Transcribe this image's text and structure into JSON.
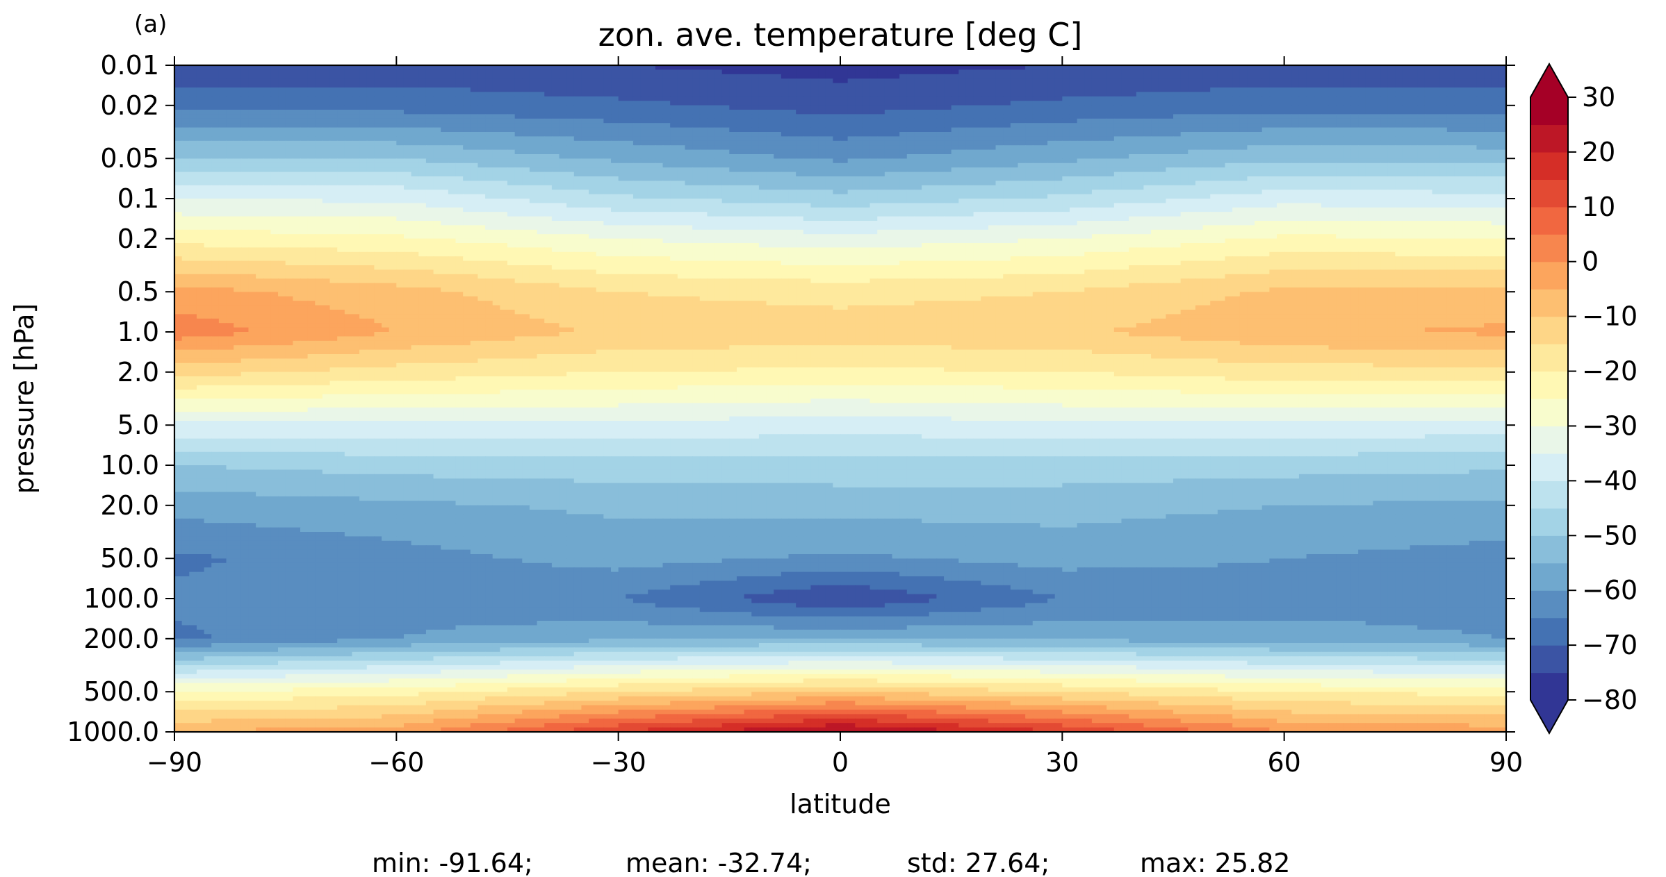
{
  "chart_data": {
    "type": "heatmap",
    "panel_label": "(a)",
    "title": "zon. ave. temperature [deg C]",
    "xlabel": "latitude",
    "ylabel": "pressure [hPa]",
    "x_scale": "linear",
    "y_scale": "log",
    "y_inverted": true,
    "xlim": [
      -90,
      90
    ],
    "ylim": [
      1000.0,
      0.01
    ],
    "x_ticks": [
      -90,
      -60,
      -30,
      0,
      30,
      60,
      90
    ],
    "x_tick_labels": [
      "−90",
      "−60",
      "−30",
      "0",
      "30",
      "60",
      "90"
    ],
    "y_ticks": [
      0.01,
      0.02,
      0.05,
      0.1,
      0.2,
      0.5,
      1.0,
      2.0,
      5.0,
      10.0,
      20.0,
      50.0,
      100.0,
      200.0,
      500.0,
      1000.0
    ],
    "y_tick_labels": [
      "0.01",
      "0.02",
      "0.05",
      "0.1",
      "0.2",
      "0.5",
      "1.0",
      "2.0",
      "5.0",
      "10.0",
      "20.0",
      "50.0",
      "100.0",
      "200.0",
      "500.0",
      "1000.0"
    ],
    "colorbar": {
      "cmap": "RdYlBu_r",
      "extend": "both",
      "levels": [
        -80,
        -75,
        -70,
        -65,
        -60,
        -55,
        -50,
        -45,
        -40,
        -35,
        -30,
        -25,
        -20,
        -15,
        -10,
        -5,
        0,
        5,
        10,
        15,
        20,
        25,
        30
      ],
      "ticks": [
        30,
        20,
        10,
        0,
        -10,
        -20,
        -30,
        -40,
        -50,
        -60,
        -70,
        -80
      ],
      "tick_labels": [
        "30",
        "20",
        "10",
        "0",
        "−10",
        "−20",
        "−30",
        "−40",
        "−50",
        "−60",
        "−70",
        "−80"
      ]
    },
    "profile_pressure": [
      0.01,
      0.02,
      0.05,
      0.1,
      0.2,
      0.5,
      1.0,
      2.0,
      5.0,
      10.0,
      20.0,
      50.0,
      100.0,
      200.0,
      500.0,
      1000.0
    ],
    "series": [
      {
        "latitude": -90,
        "values": [
          -73,
          -67,
          -50,
          -35,
          -22,
          -3,
          3,
          -13,
          -36,
          -50,
          -58,
          -66,
          -64,
          -66,
          -25,
          -5
        ]
      },
      {
        "latitude": -60,
        "values": [
          -73,
          -67,
          -50,
          -36,
          -24,
          -8,
          -5,
          -17,
          -36,
          -48,
          -56,
          -62,
          -62,
          -60,
          -22,
          -2
        ]
      },
      {
        "latitude": -30,
        "values": [
          -75,
          -69,
          -56,
          -44,
          -30,
          -15,
          -11,
          -20,
          -36,
          -47,
          -54,
          -58,
          -65,
          -56,
          -15,
          15
        ]
      },
      {
        "latitude": 0,
        "values": [
          -77,
          -72,
          -61,
          -48,
          -33,
          -17,
          -12,
          -21,
          -38,
          -47,
          -53,
          -61,
          -75,
          -55,
          -10,
          27
        ]
      },
      {
        "latitude": 30,
        "values": [
          -75,
          -69,
          -56,
          -44,
          -30,
          -15,
          -11,
          -20,
          -36,
          -47,
          -53,
          -58,
          -65,
          -56,
          -15,
          15
        ]
      },
      {
        "latitude": 60,
        "values": [
          -73,
          -67,
          -51,
          -37,
          -24,
          -9,
          -6,
          -17,
          -36,
          -48,
          -55,
          -60,
          -62,
          -58,
          -20,
          0
        ]
      },
      {
        "latitude": 90,
        "values": [
          -73,
          -67,
          -52,
          -38,
          -25,
          -9,
          -4,
          -17,
          -37,
          -49,
          -56,
          -62,
          -62,
          -60,
          -22,
          -2
        ]
      }
    ],
    "stats": {
      "min": "min: -91.64;",
      "mean": "mean: -32.74;",
      "std": "std: 27.64;",
      "max": "max: 25.82"
    }
  }
}
